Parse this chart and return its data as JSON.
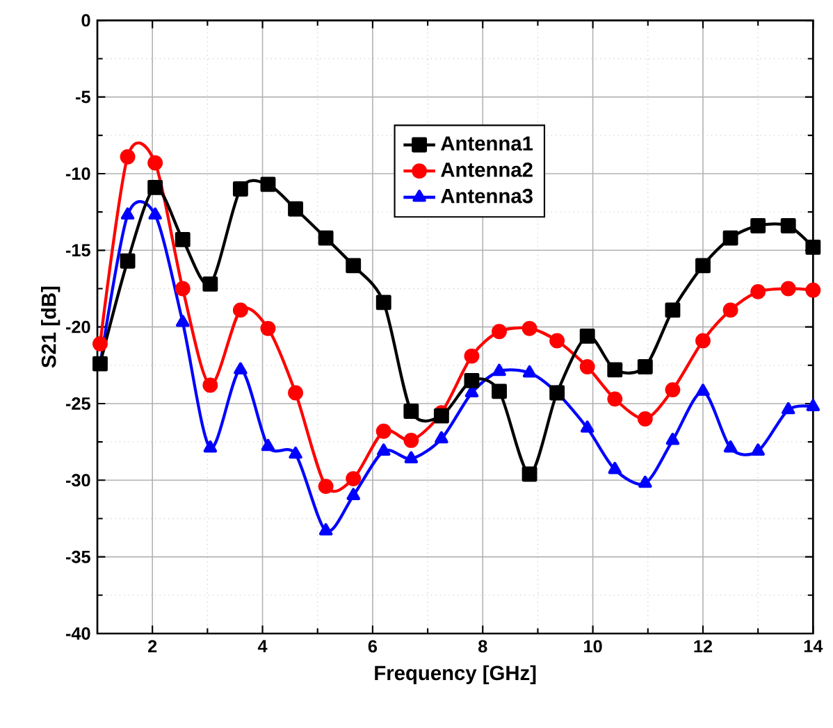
{
  "chart_data": {
    "type": "line",
    "xlabel": "Frequency [GHz]",
    "ylabel": "S21 [dB]",
    "x": [
      1.05,
      1.55,
      2.05,
      2.55,
      3.05,
      3.6,
      4.1,
      4.6,
      5.15,
      5.65,
      6.2,
      6.7,
      7.25,
      7.8,
      8.3,
      8.85,
      9.35,
      9.9,
      10.4,
      10.95,
      11.45,
      12.0,
      12.5,
      13.0,
      13.55,
      14.0
    ],
    "series": [
      {
        "name": "Antenna1",
        "color": "#000000",
        "marker": "square",
        "values": [
          -22.4,
          -15.7,
          -10.9,
          -14.3,
          -17.2,
          -11.0,
          -10.7,
          -12.3,
          -14.2,
          -16.0,
          -18.4,
          -25.5,
          -25.8,
          -23.5,
          -24.2,
          -29.6,
          -24.3,
          -20.6,
          -22.8,
          -22.6,
          -18.9,
          -16.0,
          -14.2,
          -13.4,
          -13.4,
          -14.8
        ]
      },
      {
        "name": "Antenna2",
        "color": "#ff0000",
        "marker": "circle",
        "values": [
          -21.1,
          -8.9,
          -9.3,
          -17.5,
          -23.8,
          -18.9,
          -20.1,
          -24.3,
          -30.4,
          -29.9,
          -26.8,
          -27.4,
          -25.6,
          -21.9,
          -20.3,
          -20.1,
          -20.9,
          -22.6,
          -24.7,
          -26.0,
          -24.1,
          -20.9,
          -18.9,
          -17.7,
          -17.5,
          -17.6
        ]
      },
      {
        "name": "Antenna3",
        "color": "#0000ff",
        "marker": "triangle",
        "values": [
          -22.5,
          -12.7,
          -12.7,
          -19.7,
          -27.9,
          -22.8,
          -27.8,
          -28.3,
          -33.3,
          -31.0,
          -28.1,
          -28.6,
          -27.3,
          -24.3,
          -22.9,
          -23.0,
          -24.3,
          -26.6,
          -29.3,
          -30.2,
          -27.4,
          -24.2,
          -27.9,
          -28.1,
          -25.4,
          -25.2
        ]
      }
    ],
    "xlim": [
      1,
      14
    ],
    "ylim": [
      -40,
      0
    ],
    "xticks": [
      2,
      4,
      6,
      8,
      10,
      12,
      14
    ],
    "yticks": [
      -40,
      -35,
      -30,
      -25,
      -20,
      -15,
      -10,
      -5,
      0
    ],
    "grid": true,
    "legend": "top",
    "line_style": "solid"
  }
}
